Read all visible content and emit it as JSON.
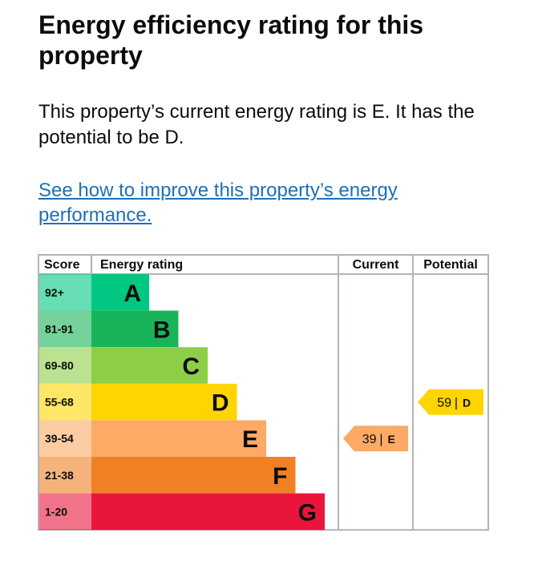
{
  "page": {
    "title": "Energy efficiency rating for this property",
    "summary": "This property’s current energy rating is E. It has the potential to be D.",
    "improve_link": "See how to improve this property’s energy performance."
  },
  "chart_data": {
    "type": "table",
    "columns": [
      "Score",
      "Energy rating",
      "Current",
      "Potential"
    ],
    "bands": [
      {
        "score": "92+",
        "letter": "A",
        "color": "#00c781"
      },
      {
        "score": "81-91",
        "letter": "B",
        "color": "#19b459"
      },
      {
        "score": "69-80",
        "letter": "C",
        "color": "#8dce46"
      },
      {
        "score": "55-68",
        "letter": "D",
        "color": "#ffd500"
      },
      {
        "score": "39-54",
        "letter": "E",
        "color": "#fcaa65"
      },
      {
        "score": "21-38",
        "letter": "F",
        "color": "#ef8023"
      },
      {
        "score": "1-20",
        "letter": "G",
        "color": "#e9153b"
      }
    ],
    "current": {
      "value": 39,
      "letter": "E",
      "color": "#fcaa65"
    },
    "potential": {
      "value": 59,
      "letter": "D",
      "color": "#ffd500"
    }
  }
}
